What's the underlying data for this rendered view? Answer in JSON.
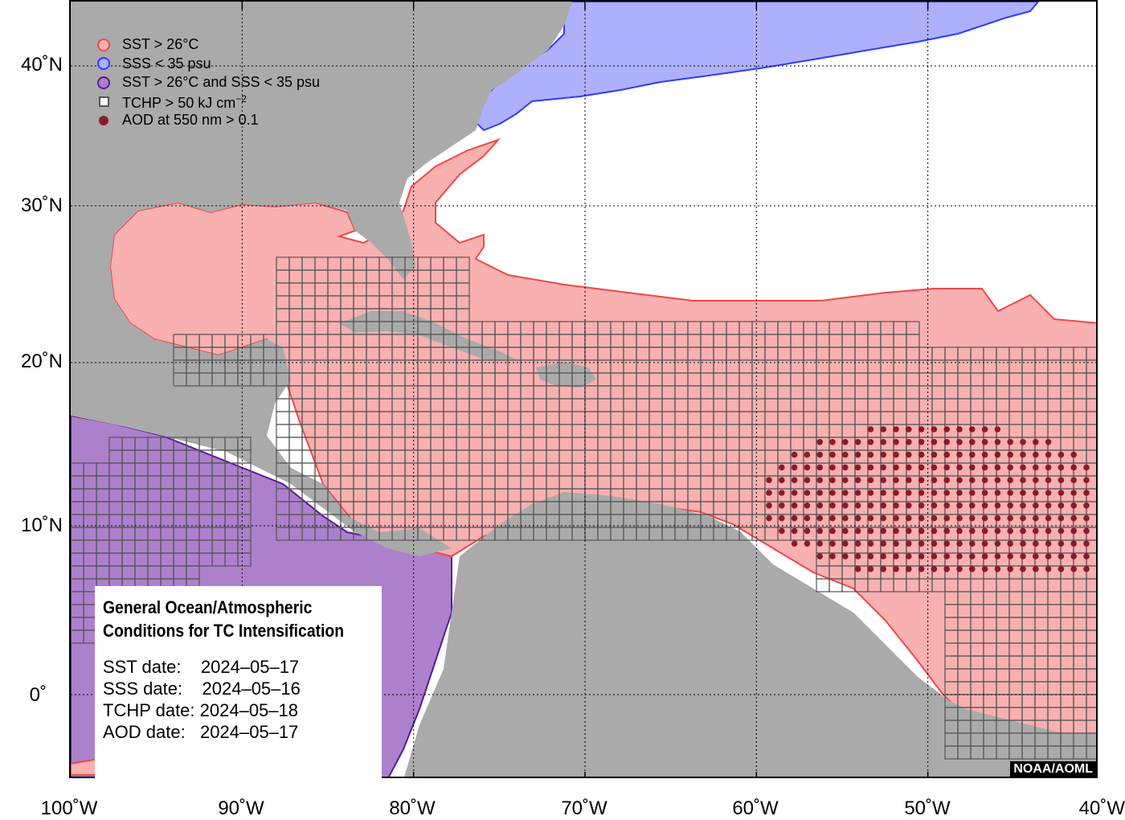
{
  "legend": [
    {
      "icon": "sst-circle-icon",
      "text": "SST > 26°C",
      "fill": "#f9b0b0",
      "stroke": "#f04848"
    },
    {
      "icon": "sss-circle-icon",
      "text": "SSS < 35 psu",
      "fill": "#aeb0fb",
      "stroke": "#2f3cff"
    },
    {
      "icon": "sst-sss-circle-icon",
      "text": "SST > 26°C and SSS < 35 psu",
      "fill": "#ad80cc",
      "stroke": "#5a1a9a"
    },
    {
      "icon": "tchp-square-icon",
      "text_main": "TCHP > 50 kJ cm",
      "text_sup": "−2"
    },
    {
      "icon": "aod-dot-icon",
      "text": "AOD at 550 nm > 0.1",
      "fill": "#8b1a2b"
    }
  ],
  "latitude_labels": [
    "40˚N",
    "30˚N",
    "20˚N",
    "10˚N",
    "0˚"
  ],
  "longitude_labels": [
    "100˚W",
    "90˚W",
    "80˚W",
    "70˚W",
    "60˚W",
    "50˚W",
    "40˚W"
  ],
  "info": {
    "title_line1": "General Ocean/Atmospheric",
    "title_line2": "Conditions for TC Intensification",
    "sst_date": "SST date:    2024–05–17",
    "sss_date": "SSS date:    2024–05–16",
    "tchp_date": "TCHP date: 2024–05–18",
    "aod_date": "AOD date:   2024–05–17"
  },
  "credit": "NOAA/AOML",
  "colors": {
    "land": "#aaaaaa",
    "sst": "#f9b0b0",
    "sst_edge": "#f04848",
    "sss": "#aeb0fb",
    "sss_edge": "#2f3cff",
    "both": "#ad80cc",
    "both_edge": "#5a1a9a",
    "tchp": "#555555",
    "aod": "#8b1a2b"
  }
}
